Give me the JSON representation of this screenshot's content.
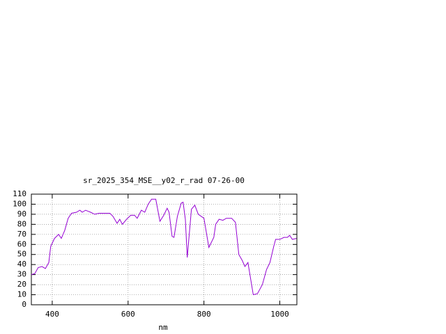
{
  "chart_data": {
    "type": "line",
    "title": "sr_2025_354_MSE__y02_r_rad 07-26-00",
    "x_label": "nm",
    "x": [
      345,
      354,
      363,
      373,
      382,
      391,
      396,
      406,
      417,
      424,
      433,
      442,
      451,
      464,
      473,
      479,
      488,
      501,
      512,
      523,
      538,
      552,
      560,
      571,
      578,
      585,
      596,
      607,
      617,
      624,
      635,
      644,
      653,
      662,
      673,
      684,
      694,
      703,
      708,
      716,
      721,
      730,
      740,
      745,
      751,
      756,
      767,
      776,
      785,
      800,
      813,
      826,
      831,
      840,
      850,
      859,
      873,
      883,
      892,
      901,
      908,
      916,
      930,
      941,
      954,
      965,
      974,
      984,
      989,
      1000,
      1011,
      1020,
      1026,
      1033,
      1044
    ],
    "series": [
      {
        "color": "#9400d3",
        "values": [
          30,
          31,
          37,
          38,
          36,
          42,
          58,
          66,
          70,
          66,
          74,
          86,
          91,
          92,
          94,
          92,
          94,
          92,
          90,
          91,
          91,
          91,
          88,
          81,
          85,
          80,
          85,
          89,
          89,
          86,
          94,
          92,
          100,
          105,
          105,
          83,
          89,
          96,
          92,
          68,
          67,
          88,
          101,
          102,
          85,
          47,
          95,
          99,
          90,
          86,
          57,
          67,
          80,
          85,
          84,
          86,
          86,
          82,
          50,
          44,
          38,
          42,
          10,
          11,
          20,
          35,
          42,
          58,
          65,
          65,
          67,
          67,
          69,
          65,
          66
        ]
      }
    ],
    "xlim": [
      345,
      1045
    ],
    "ylim": [
      0,
      110
    ],
    "xticks": [
      400,
      600,
      800,
      1000
    ],
    "yticks": [
      0,
      10,
      20,
      30,
      40,
      50,
      60,
      70,
      80,
      90,
      100,
      110
    ],
    "grid": true
  }
}
